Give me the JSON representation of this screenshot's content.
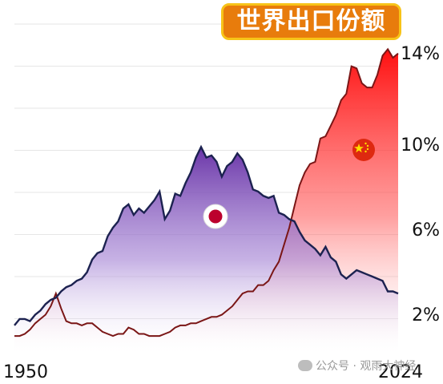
{
  "chart_data": {
    "type": "area",
    "title": "世界出口份额",
    "x_labels": [
      "1950",
      "2024"
    ],
    "xlim": [
      1950,
      2024
    ],
    "y_ticks": [
      "2%",
      "6%",
      "10%",
      "14%"
    ],
    "y_tick_values": [
      2,
      6,
      10,
      14
    ],
    "ylim": [
      0,
      15.5
    ],
    "grid": true,
    "series": [
      {
        "flag": "japan-flag",
        "color": "#1c2250",
        "fill_color": "#7e4db3",
        "x": [
          1950,
          1951,
          1952,
          1953,
          1954,
          1955,
          1956,
          1957,
          1958,
          1959,
          1960,
          1961,
          1962,
          1963,
          1964,
          1965,
          1966,
          1967,
          1968,
          1969,
          1970,
          1971,
          1972,
          1973,
          1974,
          1975,
          1976,
          1977,
          1978,
          1979,
          1980,
          1981,
          1982,
          1983,
          1984,
          1985,
          1986,
          1987,
          1988,
          1989,
          1990,
          1991,
          1992,
          1993,
          1994,
          1995,
          1996,
          1997,
          1998,
          1999,
          2000,
          2001,
          2002,
          2003,
          2004,
          2005,
          2006,
          2007,
          2008,
          2009,
          2010,
          2011,
          2012,
          2013,
          2014,
          2015,
          2016,
          2017,
          2018,
          2019,
          2020,
          2021,
          2022,
          2023,
          2024
        ],
        "y": [
          1.4,
          1.7,
          1.7,
          1.6,
          1.9,
          2.1,
          2.4,
          2.6,
          2.7,
          3.0,
          3.2,
          3.3,
          3.5,
          3.6,
          3.9,
          4.5,
          4.8,
          4.9,
          5.6,
          6.0,
          6.3,
          6.9,
          7.1,
          6.6,
          6.9,
          6.7,
          7.0,
          7.3,
          7.7,
          6.4,
          6.8,
          7.6,
          7.5,
          8.1,
          8.6,
          9.3,
          9.8,
          9.3,
          9.4,
          9.1,
          8.4,
          8.9,
          9.1,
          9.5,
          9.2,
          8.6,
          7.8,
          7.7,
          7.5,
          7.4,
          7.5,
          6.7,
          6.6,
          6.4,
          6.3,
          5.8,
          5.4,
          5.2,
          5.0,
          4.7,
          5.1,
          4.6,
          4.4,
          3.8,
          3.6,
          3.8,
          4.0,
          3.9,
          3.8,
          3.7,
          3.6,
          3.5,
          3.0,
          3.0,
          2.9
        ]
      },
      {
        "flag": "china-flag",
        "color": "#7a1616",
        "fill_color": "#ff1414",
        "x": [
          1950,
          1951,
          1952,
          1953,
          1954,
          1955,
          1956,
          1957,
          1958,
          1959,
          1960,
          1961,
          1962,
          1963,
          1964,
          1965,
          1966,
          1967,
          1968,
          1969,
          1970,
          1971,
          1972,
          1973,
          1974,
          1975,
          1976,
          1977,
          1978,
          1979,
          1980,
          1981,
          1982,
          1983,
          1984,
          1985,
          1986,
          1987,
          1988,
          1989,
          1990,
          1991,
          1992,
          1993,
          1994,
          1995,
          1996,
          1997,
          1998,
          1999,
          2000,
          2001,
          2002,
          2003,
          2004,
          2005,
          2006,
          2007,
          2008,
          2009,
          2010,
          2011,
          2012,
          2013,
          2014,
          2015,
          2016,
          2017,
          2018,
          2019,
          2020,
          2021,
          2022,
          2023,
          2024
        ],
        "y": [
          0.9,
          0.9,
          1.0,
          1.2,
          1.5,
          1.7,
          1.9,
          2.3,
          2.9,
          2.2,
          1.6,
          1.5,
          1.5,
          1.4,
          1.5,
          1.5,
          1.3,
          1.1,
          1.0,
          0.9,
          1.0,
          1.0,
          1.3,
          1.2,
          1.0,
          1.0,
          0.9,
          0.9,
          0.9,
          1.0,
          1.1,
          1.3,
          1.4,
          1.4,
          1.5,
          1.5,
          1.6,
          1.7,
          1.8,
          1.8,
          1.9,
          2.1,
          2.3,
          2.6,
          2.9,
          3.0,
          3.0,
          3.3,
          3.3,
          3.5,
          4.0,
          4.4,
          5.2,
          6.0,
          7.0,
          8.0,
          8.6,
          9.0,
          9.1,
          10.2,
          10.3,
          10.8,
          11.3,
          12.0,
          12.3,
          13.6,
          13.5,
          12.8,
          12.6,
          12.6,
          13.2,
          14.1,
          14.4,
          14.0,
          14.2
        ]
      }
    ]
  },
  "watermark": "公众号 · 观雨大神经"
}
